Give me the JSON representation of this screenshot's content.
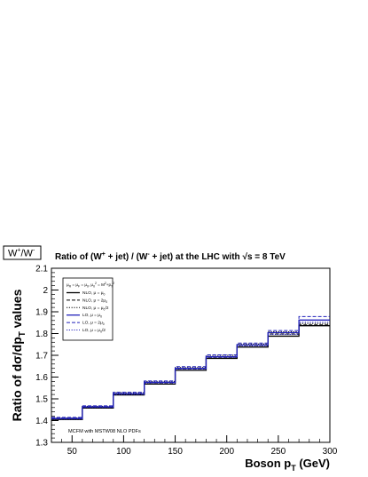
{
  "label_box": {
    "text": "W",
    "sup1": "+",
    "sep": "/W",
    "sup2": "-"
  },
  "title": {
    "part1": "Ratio of (W",
    "sup1": "+",
    "part2": " + jet) / (W",
    "sup2": "-",
    "part3": " + jet) at the LHC with ",
    "root": "√",
    "part4": "s = 8 TeV"
  },
  "axes": {
    "ylabel": {
      "pre": "Ratio of dσ/dp",
      "sub": "T",
      "post": " values"
    },
    "xlabel": {
      "pre": "Boson p",
      "sub": "T",
      "post": "  (GeV)"
    }
  },
  "footnote": "MCFM with MSTW08 NLO PDFs",
  "legend": {
    "header": {
      "t1": "μ",
      "s1": "R",
      "t2": " = μ",
      "s2": "F",
      "t3": " = μ",
      "s3": "0",
      "t4": ", μ",
      "s4": "0",
      "sup4": "2",
      "t5": " = M",
      "sup5": "2",
      "t6": "+p",
      "sub6": "T",
      "sup6": "2"
    },
    "entries": [
      {
        "pre": "NLO, μ = μ",
        "sub": "0",
        "post": ""
      },
      {
        "pre": "NLO, μ = 2μ",
        "sub": "0",
        "post": ""
      },
      {
        "pre": "NLO, μ = μ",
        "sub": "0",
        "post": "/2"
      },
      {
        "pre": "LO, μ = μ",
        "sub": "0",
        "post": ""
      },
      {
        "pre": "LO, μ = 2μ",
        "sub": "0",
        "post": ""
      },
      {
        "pre": "LO, μ = μ",
        "sub": "0",
        "post": "/2"
      }
    ]
  },
  "chart_data": {
    "type": "line",
    "step": true,
    "xlim": [
      30,
      300
    ],
    "ylim": [
      1.3,
      2.1
    ],
    "x_ticks": [
      50,
      100,
      150,
      200,
      250,
      300
    ],
    "y_ticks": [
      1.3,
      1.4,
      1.5,
      1.6,
      1.7,
      1.8,
      1.9,
      2.0,
      2.1
    ],
    "x_tick_labels": [
      "50",
      "100",
      "150",
      "200",
      "250",
      "300"
    ],
    "y_tick_labels": [
      "1.3",
      "1.4",
      "1.5",
      "1.6",
      "1.7",
      "1.8",
      "1.9",
      "2",
      "2.1"
    ],
    "bin_edges": [
      30,
      60,
      90,
      120,
      150,
      180,
      210,
      240,
      270,
      300
    ],
    "grid": false,
    "legend_position": "top-left",
    "series": [
      {
        "name": "NLO, μ = μ0",
        "color": "#000000",
        "dash": "solid",
        "values": [
          1.405,
          1.458,
          1.518,
          1.568,
          1.631,
          1.686,
          1.738,
          1.788,
          1.836
        ]
      },
      {
        "name": "NLO, μ = 2μ0",
        "color": "#000000",
        "dash": "dashed",
        "values": [
          1.408,
          1.462,
          1.522,
          1.574,
          1.638,
          1.692,
          1.746,
          1.798,
          1.84
        ]
      },
      {
        "name": "NLO, μ = μ0/2",
        "color": "#000000",
        "dash": "dotted",
        "values": [
          1.412,
          1.466,
          1.528,
          1.58,
          1.644,
          1.7,
          1.752,
          1.808,
          1.846
        ]
      },
      {
        "name": "LO, μ = μ0",
        "color": "#2222bb",
        "dash": "solid",
        "values": [
          1.41,
          1.463,
          1.524,
          1.576,
          1.64,
          1.694,
          1.748,
          1.804,
          1.862
        ]
      },
      {
        "name": "LO, μ = 2μ0",
        "color": "#2222bb",
        "dash": "dashed",
        "values": [
          1.415,
          1.468,
          1.53,
          1.582,
          1.648,
          1.702,
          1.756,
          1.814,
          1.878
        ]
      },
      {
        "name": "LO, μ = μ0/2",
        "color": "#2222bb",
        "dash": "dotted",
        "values": [
          1.407,
          1.46,
          1.52,
          1.572,
          1.636,
          1.69,
          1.742,
          1.796,
          1.852
        ]
      }
    ]
  }
}
